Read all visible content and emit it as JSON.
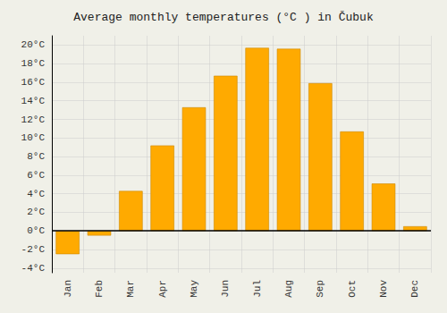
{
  "chart_data": {
    "type": "bar",
    "title": "Average monthly temperatures (°C ) in Čubuk",
    "categories": [
      "Jan",
      "Feb",
      "Mar",
      "Apr",
      "May",
      "Jun",
      "Jul",
      "Aug",
      "Sep",
      "Oct",
      "Nov",
      "Dec"
    ],
    "values": [
      -2.5,
      -0.5,
      4.3,
      9.2,
      13.3,
      16.7,
      19.7,
      19.6,
      15.9,
      10.7,
      5.1,
      0.5
    ],
    "color": "#FFAA00",
    "ylim": [
      -4.5,
      21
    ],
    "yticks": [
      {
        "value": -4,
        "label": "-4°C"
      },
      {
        "value": -2,
        "label": "-2°C"
      },
      {
        "value": 0,
        "label": "0°C"
      },
      {
        "value": 2,
        "label": "2°C"
      },
      {
        "value": 4,
        "label": "4°C"
      },
      {
        "value": 6,
        "label": "6°C"
      },
      {
        "value": 8,
        "label": "8°C"
      },
      {
        "value": 10,
        "label": "10°C"
      },
      {
        "value": 12,
        "label": "12°C"
      },
      {
        "value": 14,
        "label": "14°C"
      },
      {
        "value": 16,
        "label": "16°C"
      },
      {
        "value": 18,
        "label": "18°C"
      },
      {
        "value": 20,
        "label": "20°C"
      }
    ],
    "grid": true
  }
}
